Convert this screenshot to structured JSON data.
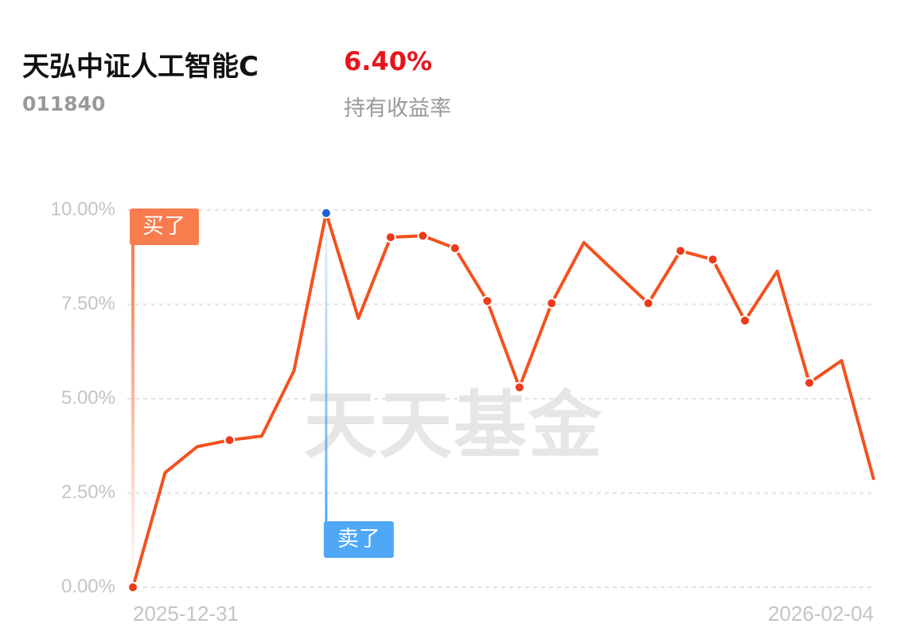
{
  "header": {
    "fund_name": "天弘中证人工智能C",
    "fund_code": "011840",
    "return_value": "6.40%",
    "return_label": "持有收益率"
  },
  "chart_data": {
    "type": "line",
    "watermark": "天天基金",
    "categories": [
      "2025-12-31",
      null,
      null,
      null,
      null,
      null,
      null,
      null,
      null,
      null,
      null,
      null,
      null,
      null,
      null,
      null,
      null,
      null,
      null,
      null,
      null,
      null,
      null,
      "2026-02-04"
    ],
    "series": [
      {
        "color": "#f4511e",
        "marker_color": "#ef3a1c",
        "values": [
          0.0,
          3.04,
          3.73,
          3.9,
          4.01,
          5.74,
          9.92,
          7.13,
          9.28,
          9.32,
          8.99,
          7.59,
          5.3,
          7.53,
          9.14,
          8.33,
          7.53,
          8.92,
          8.69,
          7.07,
          8.38,
          5.42,
          6.01,
          2.85
        ],
        "markers": [
          true,
          false,
          false,
          true,
          false,
          false,
          true,
          false,
          true,
          true,
          true,
          true,
          true,
          true,
          false,
          false,
          true,
          true,
          true,
          true,
          false,
          true,
          false,
          false
        ]
      }
    ],
    "annotations": [
      {
        "text": "买了",
        "index": 0,
        "color": "#f97c4e",
        "direction": "up"
      },
      {
        "text": "卖了",
        "index": 6,
        "color": "#4ea8f5",
        "dot_color": "#1f5fd4",
        "direction": "down"
      }
    ],
    "ylim": [
      0,
      10
    ],
    "yticks": [
      {
        "value": 0,
        "label": "0.00%"
      },
      {
        "value": 2.5,
        "label": "2.50%"
      },
      {
        "value": 5,
        "label": "5.00%"
      },
      {
        "value": 7.5,
        "label": "7.50%"
      },
      {
        "value": 10,
        "label": "10.00%"
      }
    ],
    "grid": true
  }
}
